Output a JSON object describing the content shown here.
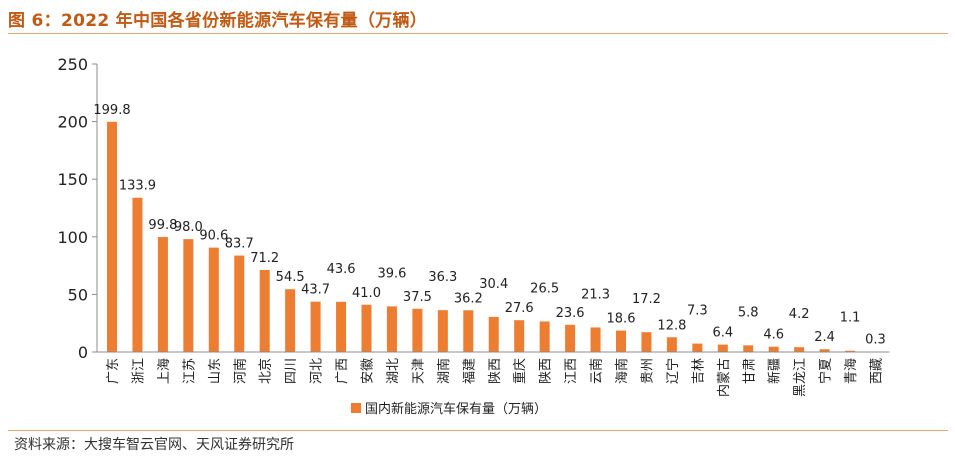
{
  "title": "图 6：2022 年中国各省份新能源汽车保有量（万辆）",
  "source": "资料来源：大搜车智云官网、天风证券研究所",
  "colors": {
    "bar": "#ed7d31",
    "title": "#c05a14",
    "rule": "#e8a76b",
    "axis": "#8c8c8c"
  },
  "chart_data": {
    "type": "bar",
    "categories": [
      "广东",
      "浙江",
      "上海",
      "江苏",
      "山东",
      "河南",
      "北京",
      "四川",
      "河北",
      "广西",
      "安徽",
      "湖北",
      "天津",
      "湖南",
      "福建",
      "陕西",
      "重庆",
      "陕西",
      "江西",
      "云南",
      "海南",
      "贵州",
      "辽宁",
      "吉林",
      "内蒙古",
      "甘肃",
      "新疆",
      "黑龙江",
      "宁夏",
      "青海",
      "西藏"
    ],
    "series": [
      {
        "name": "国内新能源汽车保有量（万辆）",
        "values": [
          199.8,
          133.9,
          99.8,
          98.0,
          90.6,
          83.7,
          71.2,
          54.5,
          43.7,
          43.6,
          41.0,
          39.6,
          37.5,
          36.3,
          36.2,
          30.4,
          27.6,
          26.5,
          23.6,
          21.3,
          18.6,
          17.2,
          12.8,
          7.3,
          6.4,
          5.8,
          4.6,
          4.2,
          2.4,
          1.1,
          0.3
        ],
        "labels": [
          "199.8",
          "133.9",
          "99.8",
          "98.0",
          "90.6",
          "83.7",
          "71.2",
          "54.5",
          "43.7",
          "43.6",
          "41.0",
          "39.6",
          "37.5",
          "36.3",
          "36.2",
          "30.4",
          "27.6",
          "26.5",
          "23.6",
          "21.3",
          "18.6",
          "17.2",
          "12.8",
          "7.3",
          "6.4",
          "5.8",
          "4.6",
          "4.2",
          "2.4",
          "1.1",
          "0.3"
        ]
      }
    ],
    "ylim": [
      0,
      250
    ],
    "yticks": [
      "0",
      "50",
      "100",
      "150",
      "200",
      "250"
    ],
    "grid": false,
    "legend_position": "bottom"
  }
}
